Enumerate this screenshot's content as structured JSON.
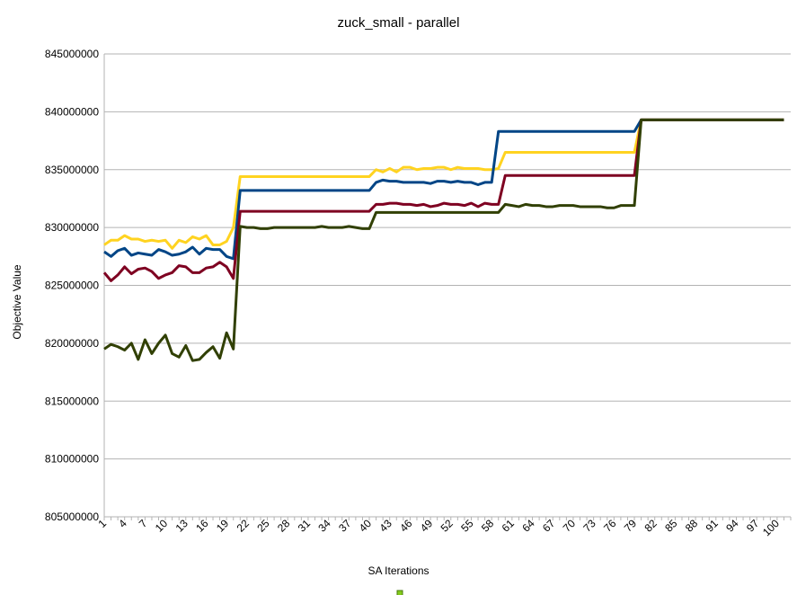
{
  "chart_data": {
    "type": "line",
    "title": "zuck_small - parallel",
    "xlabel": "SA Iterations",
    "ylabel": "Objective Value",
    "ylim": [
      805000000,
      845000000
    ],
    "y_ticks": [
      "805000000",
      "810000000",
      "815000000",
      "820000000",
      "825000000",
      "830000000",
      "835000000",
      "840000000",
      "845000000"
    ],
    "x_ticks": [
      "1",
      "4",
      "7",
      "10",
      "13",
      "16",
      "19",
      "22",
      "25",
      "28",
      "31",
      "34",
      "37",
      "40",
      "43",
      "46",
      "49",
      "52",
      "55",
      "58",
      "61",
      "64",
      "67",
      "70",
      "73",
      "76",
      "79",
      "82",
      "85",
      "88",
      "91",
      "94",
      "97",
      "100"
    ],
    "x_range": [
      1,
      102
    ],
    "grid": "horizontal",
    "legend": "bottom",
    "series": [
      {
        "color": "#ffd320",
        "values": [
          828500000,
          828900000,
          828900000,
          829300000,
          829000000,
          829000000,
          828800000,
          828900000,
          828800000,
          828900000,
          828200000,
          828900000,
          828700000,
          829200000,
          829000000,
          829300000,
          828500000,
          828500000,
          828800000,
          830000000,
          834400000,
          834400000,
          834400000,
          834400000,
          834400000,
          834400000,
          834400000,
          834400000,
          834400000,
          834400000,
          834400000,
          834400000,
          834400000,
          834400000,
          834400000,
          834400000,
          834400000,
          834400000,
          834400000,
          834400000,
          835000000,
          834800000,
          835100000,
          834800000,
          835200000,
          835200000,
          835000000,
          835100000,
          835100000,
          835200000,
          835200000,
          835000000,
          835200000,
          835100000,
          835100000,
          835100000,
          835000000,
          835000000,
          835100000,
          836500000,
          836500000,
          836500000,
          836500000,
          836500000,
          836500000,
          836500000,
          836500000,
          836500000,
          836500000,
          836500000,
          836500000,
          836500000,
          836500000,
          836500000,
          836500000,
          836500000,
          836500000,
          836500000,
          836500000,
          839300000,
          839300000,
          839300000,
          839300000,
          839300000,
          839300000,
          839300000,
          839300000,
          839300000,
          839300000,
          839300000,
          839300000,
          839300000,
          839300000,
          839300000,
          839300000,
          839300000,
          839300000,
          839300000,
          839300000,
          839300000,
          839300000
        ]
      },
      {
        "color": "#004586",
        "values": [
          827900000,
          827500000,
          828000000,
          828200000,
          827600000,
          827800000,
          827700000,
          827600000,
          828100000,
          827900000,
          827600000,
          827700000,
          827900000,
          828300000,
          827700000,
          828200000,
          828100000,
          828100000,
          827500000,
          827300000,
          833200000,
          833200000,
          833200000,
          833200000,
          833200000,
          833200000,
          833200000,
          833200000,
          833200000,
          833200000,
          833200000,
          833200000,
          833200000,
          833200000,
          833200000,
          833200000,
          833200000,
          833200000,
          833200000,
          833200000,
          833900000,
          834100000,
          834000000,
          834000000,
          833900000,
          833900000,
          833900000,
          833900000,
          833800000,
          834000000,
          834000000,
          833900000,
          834000000,
          833900000,
          833900000,
          833700000,
          833900000,
          833900000,
          838300000,
          838300000,
          838300000,
          838300000,
          838300000,
          838300000,
          838300000,
          838300000,
          838300000,
          838300000,
          838300000,
          838300000,
          838300000,
          838300000,
          838300000,
          838300000,
          838300000,
          838300000,
          838300000,
          838300000,
          838300000,
          839300000,
          839300000,
          839300000,
          839300000,
          839300000,
          839300000,
          839300000,
          839300000,
          839300000,
          839300000,
          839300000,
          839300000,
          839300000,
          839300000,
          839300000,
          839300000,
          839300000,
          839300000,
          839300000,
          839300000,
          839300000,
          839300000
        ]
      },
      {
        "color": "#7e0021",
        "values": [
          826100000,
          825400000,
          825900000,
          826600000,
          826000000,
          826400000,
          826500000,
          826200000,
          825600000,
          825900000,
          826100000,
          826700000,
          826600000,
          826100000,
          826100000,
          826500000,
          826600000,
          827000000,
          826600000,
          825600000,
          831400000,
          831400000,
          831400000,
          831400000,
          831400000,
          831400000,
          831400000,
          831400000,
          831400000,
          831400000,
          831400000,
          831400000,
          831400000,
          831400000,
          831400000,
          831400000,
          831400000,
          831400000,
          831400000,
          831400000,
          832000000,
          832000000,
          832100000,
          832100000,
          832000000,
          832000000,
          831900000,
          832000000,
          831800000,
          831900000,
          832100000,
          832000000,
          832000000,
          831900000,
          832100000,
          831800000,
          832100000,
          832000000,
          832000000,
          834500000,
          834500000,
          834500000,
          834500000,
          834500000,
          834500000,
          834500000,
          834500000,
          834500000,
          834500000,
          834500000,
          834500000,
          834500000,
          834500000,
          834500000,
          834500000,
          834500000,
          834500000,
          834500000,
          834500000,
          839300000,
          839300000,
          839300000,
          839300000,
          839300000,
          839300000,
          839300000,
          839300000,
          839300000,
          839300000,
          839300000,
          839300000,
          839300000,
          839300000,
          839300000,
          839300000,
          839300000,
          839300000,
          839300000,
          839300000,
          839300000,
          839300000
        ]
      },
      {
        "color": "#314004",
        "values": [
          819500000,
          819900000,
          819700000,
          819400000,
          820000000,
          818600000,
          820300000,
          819100000,
          820000000,
          820700000,
          819100000,
          818800000,
          819800000,
          818500000,
          818600000,
          819200000,
          819700000,
          818700000,
          820900000,
          819500000,
          830100000,
          830000000,
          830000000,
          829900000,
          829900000,
          830000000,
          830000000,
          830000000,
          830000000,
          830000000,
          830000000,
          830000000,
          830100000,
          830000000,
          830000000,
          830000000,
          830100000,
          830000000,
          829900000,
          829900000,
          831300000,
          831300000,
          831300000,
          831300000,
          831300000,
          831300000,
          831300000,
          831300000,
          831300000,
          831300000,
          831300000,
          831300000,
          831300000,
          831300000,
          831300000,
          831300000,
          831300000,
          831300000,
          831300000,
          832000000,
          831900000,
          831800000,
          832000000,
          831900000,
          831900000,
          831800000,
          831800000,
          831900000,
          831900000,
          831900000,
          831800000,
          831800000,
          831800000,
          831800000,
          831700000,
          831700000,
          831900000,
          831900000,
          831900000,
          839300000,
          839300000,
          839300000,
          839300000,
          839300000,
          839300000,
          839300000,
          839300000,
          839300000,
          839300000,
          839300000,
          839300000,
          839300000,
          839300000,
          839300000,
          839300000,
          839300000,
          839300000,
          839300000,
          839300000,
          839300000,
          839300000
        ]
      }
    ]
  }
}
